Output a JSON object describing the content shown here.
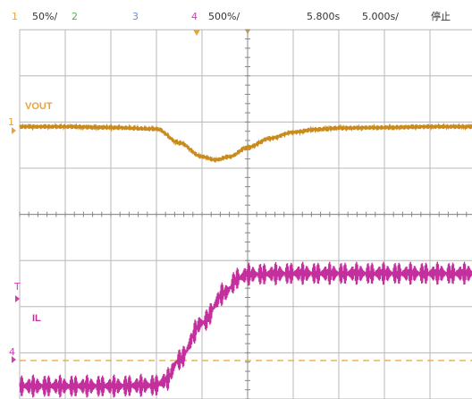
{
  "header": {
    "channels": [
      {
        "num": "1",
        "scale": "50%/",
        "color": "#e8a33a"
      },
      {
        "num": "2",
        "scale": "",
        "color": "#46b843"
      },
      {
        "num": "3",
        "scale": "",
        "color": "#6a8ee0"
      },
      {
        "num": "4",
        "scale": "500%/",
        "color": "#d040b0"
      }
    ],
    "time_offset": "5.800s",
    "timebase": "5.000s/",
    "run_state": "停止"
  },
  "markers": {
    "ch1": "1",
    "ch4_level": "T",
    "ch4": "4"
  },
  "colors": {
    "vout": "#c98a1e",
    "il": "#c42f9e",
    "grid": "#b8b8b8",
    "trigger": "#e8a33a"
  },
  "chart_data": {
    "type": "line",
    "title": "",
    "xlabel": "",
    "ylabel": "",
    "grid": true,
    "x_divisions": 10,
    "y_divisions": 8,
    "xlim": [
      0,
      10
    ],
    "ylim": [
      0,
      8
    ],
    "series": [
      {
        "name": "VOUT",
        "label": "VOUT",
        "x": [
          0,
          1,
          2,
          3.0,
          3.5,
          4.0,
          4.3,
          4.6,
          5.0,
          5.5,
          6.0,
          6.5,
          7.0,
          8.0,
          9.0,
          10
        ],
        "y": [
          5.9,
          5.9,
          5.88,
          5.85,
          5.55,
          5.25,
          5.18,
          5.25,
          5.45,
          5.65,
          5.78,
          5.84,
          5.87,
          5.88,
          5.9,
          5.9
        ],
        "ripple": 0.05
      },
      {
        "name": "IL",
        "label": "IL",
        "x": [
          0,
          1,
          2,
          3.0,
          3.2,
          3.5,
          4.0,
          4.5,
          4.8,
          5.0,
          6,
          7,
          8,
          9,
          10
        ],
        "y": [
          0.28,
          0.28,
          0.28,
          0.3,
          0.4,
          0.85,
          1.65,
          2.3,
          2.62,
          2.7,
          2.72,
          2.72,
          2.72,
          2.72,
          2.72
        ],
        "ripple": 0.22
      }
    ],
    "trigger_level_y": 0.0
  }
}
